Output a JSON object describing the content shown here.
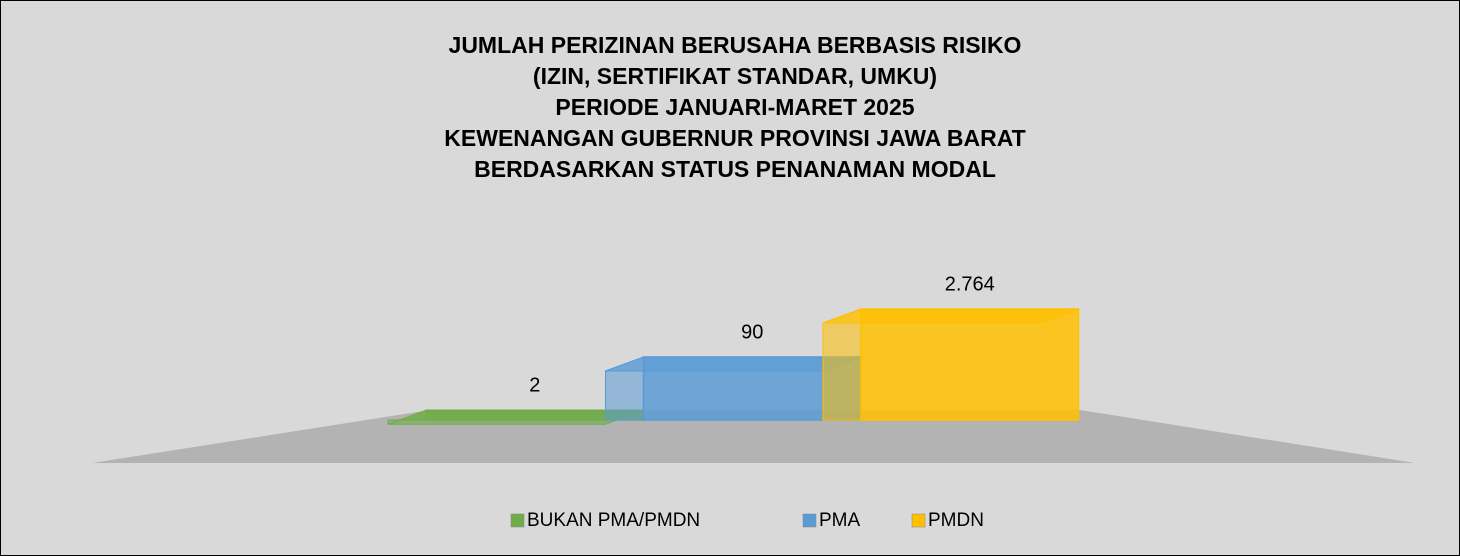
{
  "chart_data": {
    "type": "bar3d",
    "title": [
      "JUMLAH PERIZINAN BERUSAHA BERBASIS RISIKO",
      "(IZIN, SERTIFIKAT STANDAR, UMKU)",
      "PERIODE JANUARI-MARET 2025",
      "KEWENANGAN GUBERNUR PROVINSI JAWA BARAT",
      "BERDASARKAN STATUS PENANAMAN MODAL"
    ],
    "series": [
      {
        "name": "BUKAN PMA/PMDN",
        "color": "#70ad47",
        "values": [
          2
        ],
        "value_labels": [
          "2"
        ]
      },
      {
        "name": "PMA",
        "color": "#5b9bd5",
        "values": [
          90
        ],
        "value_labels": [
          "90"
        ]
      },
      {
        "name": "PMDN",
        "color": "#ffc000",
        "values": [
          2764
        ],
        "value_labels": [
          "2.764"
        ]
      }
    ],
    "log_scale": true,
    "ylim": [
      1,
      10000
    ],
    "legend": "bottom"
  }
}
